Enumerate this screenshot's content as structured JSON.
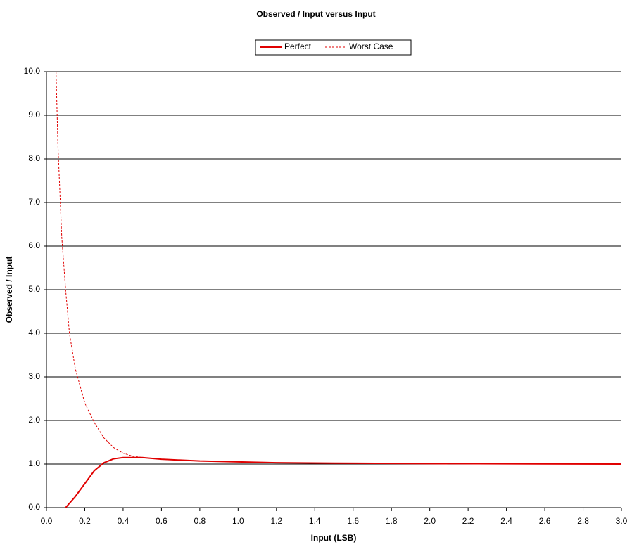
{
  "chart_data": {
    "type": "line",
    "title": "Observed / Input versus Input",
    "x_label": "Input (LSB)",
    "y_label": "Observed / Input",
    "series": [
      {
        "name": "Perfect",
        "color": "#e00000",
        "line_style": "solid",
        "x": [
          0.1,
          0.15,
          0.2,
          0.25,
          0.3,
          0.35,
          0.4,
          0.5,
          0.6,
          0.8,
          1.0,
          1.2,
          1.5,
          2.0,
          3.0
        ],
        "values": [
          0,
          0.25,
          0.55,
          0.85,
          1.03,
          1.12,
          1.15,
          1.15,
          1.11,
          1.07,
          1.05,
          1.03,
          1.02,
          1.01,
          1.0
        ]
      },
      {
        "name": "Worst Case",
        "color": "#e00000",
        "line_style": "dashed",
        "x": [
          0.05,
          0.06,
          0.08,
          0.1,
          0.12,
          0.15,
          0.2,
          0.25,
          0.3,
          0.35,
          0.4,
          0.45,
          0.5,
          0.6
        ],
        "values": [
          10,
          8.3,
          6.2,
          5.0,
          4.0,
          3.2,
          2.4,
          1.95,
          1.6,
          1.38,
          1.25,
          1.18,
          1.15,
          1.11
        ]
      }
    ],
    "xlim": [
      0,
      3
    ],
    "ylim": [
      0,
      10
    ],
    "xticks": [
      {
        "value": 0,
        "label": "0.0"
      },
      {
        "value": 0.2,
        "label": "0.2"
      },
      {
        "value": 0.4,
        "label": "0.4"
      },
      {
        "value": 0.6,
        "label": "0.6"
      },
      {
        "value": 0.8,
        "label": "0.8"
      },
      {
        "value": 1,
        "label": "1.0"
      },
      {
        "value": 1.2,
        "label": "1.2"
      },
      {
        "value": 1.4,
        "label": "1.4"
      },
      {
        "value": 1.6,
        "label": "1.6"
      },
      {
        "value": 1.8,
        "label": "1.8"
      },
      {
        "value": 2,
        "label": "2.0"
      },
      {
        "value": 2.2,
        "label": "2.2"
      },
      {
        "value": 2.4,
        "label": "2.4"
      },
      {
        "value": 2.6,
        "label": "2.6"
      },
      {
        "value": 2.8,
        "label": "2.8"
      },
      {
        "value": 3,
        "label": "3.0"
      }
    ],
    "yticks": [
      {
        "value": 0,
        "label": "0.0"
      },
      {
        "value": 1,
        "label": "1.0"
      },
      {
        "value": 2,
        "label": "2.0"
      },
      {
        "value": 3,
        "label": "3.0"
      },
      {
        "value": 4,
        "label": "4.0"
      },
      {
        "value": 5,
        "label": "5.0"
      },
      {
        "value": 6,
        "label": "6.0"
      },
      {
        "value": 7,
        "label": "7.0"
      },
      {
        "value": 8,
        "label": "8.0"
      },
      {
        "value": 9,
        "label": "9.0"
      },
      {
        "value": 10,
        "label": "10.0"
      }
    ],
    "grid": true,
    "legend": "top"
  }
}
